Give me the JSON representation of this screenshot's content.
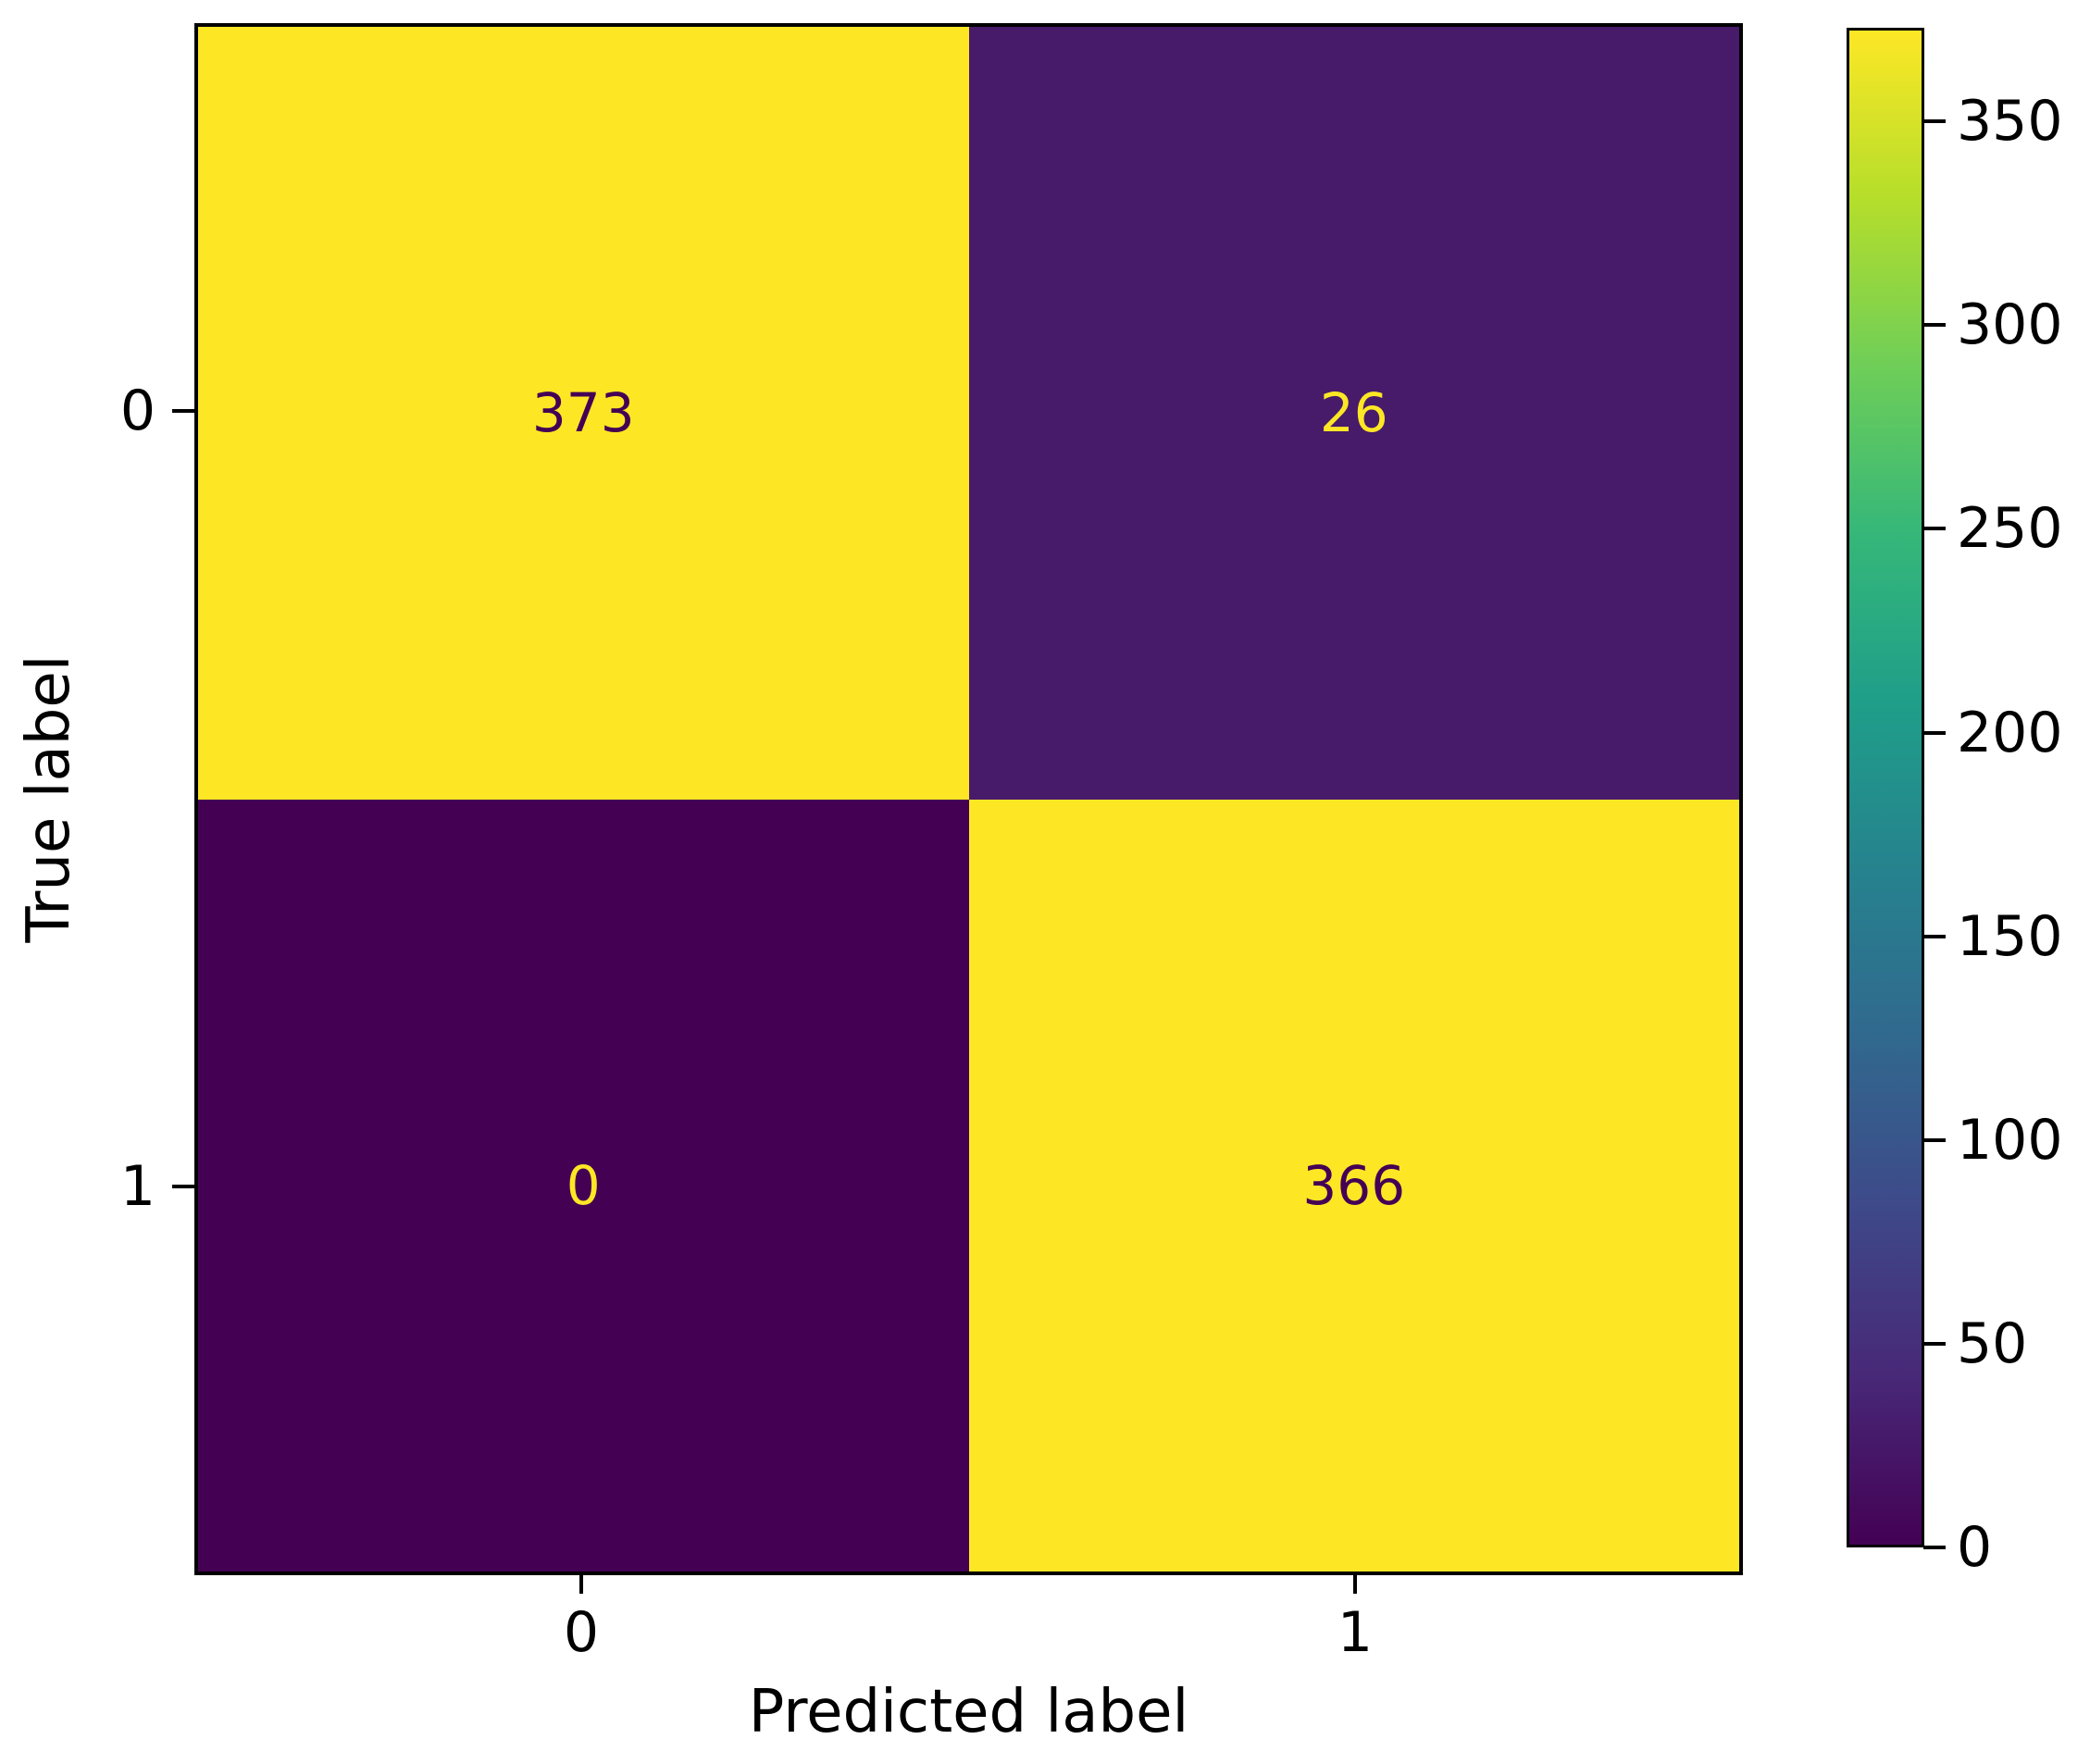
{
  "chart_data": {
    "type": "heatmap",
    "subtype": "confusion-matrix",
    "title": "",
    "xlabel": "Predicted label",
    "ylabel": "True label",
    "x_tick_labels": [
      "0",
      "1"
    ],
    "y_tick_labels": [
      "0",
      "1"
    ],
    "matrix": [
      [
        373,
        26
      ],
      [
        0,
        366
      ]
    ],
    "vmin": 0,
    "vmax": 373,
    "colormap": "viridis",
    "colorbar_ticks": [
      0,
      50,
      100,
      150,
      200,
      250,
      300,
      350
    ],
    "colorbar_position": "right",
    "grid": false
  },
  "cells": [
    {
      "row": 0,
      "col": 0,
      "value": "373",
      "bg": "#fde725",
      "fg": "#440154"
    },
    {
      "row": 0,
      "col": 1,
      "value": "26",
      "bg": "#481a6a",
      "fg": "#fde725"
    },
    {
      "row": 1,
      "col": 0,
      "value": "0",
      "bg": "#440154",
      "fg": "#fde725"
    },
    {
      "row": 1,
      "col": 1,
      "value": "366",
      "bg": "#fde725",
      "fg": "#440154"
    }
  ],
  "axes": {
    "xlabel": "Predicted label",
    "ylabel": "True label",
    "xticks": [
      "0",
      "1"
    ],
    "yticks": [
      "0",
      "1"
    ]
  },
  "colors": {
    "viridis_min": "#440154",
    "viridis_max": "#fde725",
    "cell_26": "#481a6a",
    "spine": "#000000",
    "background": "#ffffff",
    "text": "#000000"
  }
}
